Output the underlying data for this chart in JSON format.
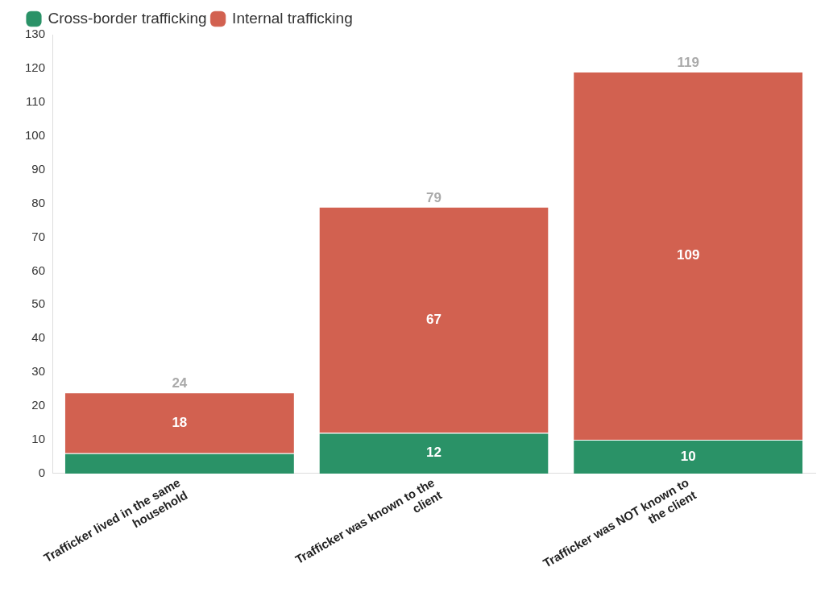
{
  "chart_data": {
    "type": "bar",
    "stacked": true,
    "categories": [
      "Trafficker lived in the same household",
      "Trafficker was known to the client",
      "Trafficker was NOT known to the client"
    ],
    "series": [
      {
        "name": "Cross-border trafficking",
        "color": "#2a9267",
        "values": [
          6,
          12,
          10
        ],
        "value_labels": [
          null,
          "12",
          "10"
        ]
      },
      {
        "name": "Internal trafficking",
        "color": "#d26150",
        "values": [
          18,
          67,
          109
        ],
        "value_labels": [
          "18",
          "67",
          "109"
        ]
      }
    ],
    "totals": [
      "24",
      "79",
      "119"
    ],
    "ylim": [
      0,
      130
    ],
    "yticks": [
      0,
      10,
      20,
      30,
      40,
      50,
      60,
      70,
      80,
      90,
      100,
      110,
      120,
      130
    ],
    "grid": false,
    "legend": "top left"
  }
}
